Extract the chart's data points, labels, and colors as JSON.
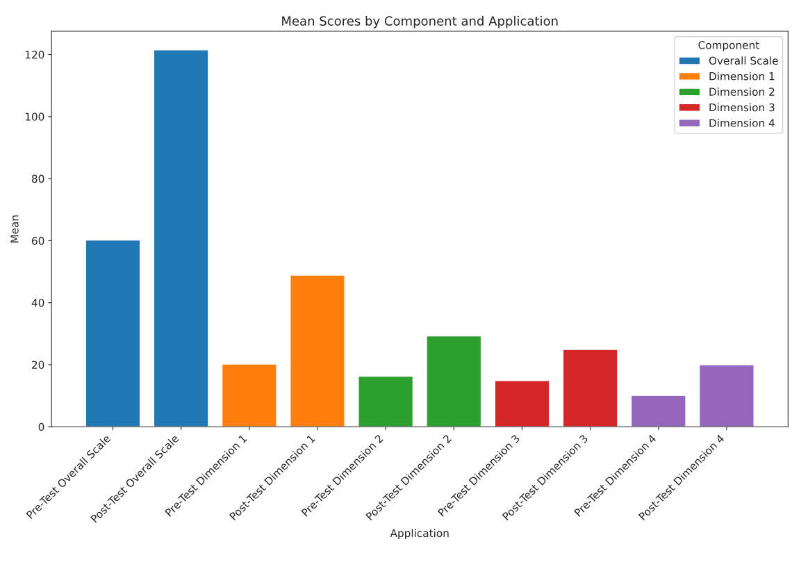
{
  "chart_data": {
    "type": "bar",
    "title": "Mean Scores by Component and Application",
    "xlabel": "Application",
    "ylabel": "Mean",
    "legend_title": "Component",
    "categories": [
      "Pre-Test Overall Scale",
      "Post-Test Overall Scale",
      "Pre-Test Dimension 1",
      "Post-Test Dimension 1",
      "Pre-Test Dimension 2",
      "Post-Test Dimension 2",
      "Pre-Test Dimension 3",
      "Post-Test Dimension 3",
      "Pre-Test Dimension 4",
      "Post-Test Dimension 4"
    ],
    "series": [
      {
        "name": "Overall Scale",
        "color": "#1f77b4",
        "values": [
          60.2,
          121.5,
          null,
          null,
          null,
          null,
          null,
          null,
          null,
          null
        ]
      },
      {
        "name": "Dimension 1",
        "color": "#ff7f0e",
        "values": [
          null,
          null,
          20.2,
          48.9,
          null,
          null,
          null,
          null,
          null,
          null
        ]
      },
      {
        "name": "Dimension 2",
        "color": "#2ca02c",
        "values": [
          null,
          null,
          null,
          null,
          16.3,
          29.3,
          null,
          null,
          null,
          null
        ]
      },
      {
        "name": "Dimension 3",
        "color": "#d62728",
        "values": [
          null,
          null,
          null,
          null,
          null,
          null,
          14.9,
          24.9,
          null,
          null
        ]
      },
      {
        "name": "Dimension 4",
        "color": "#9467bd",
        "values": [
          null,
          null,
          null,
          null,
          null,
          null,
          null,
          null,
          10.1,
          20.0
        ]
      }
    ],
    "ylim": [
      0,
      127.5
    ],
    "yticks": [
      0,
      20,
      40,
      60,
      80,
      100,
      120
    ],
    "grid": false,
    "legend": "top right"
  }
}
